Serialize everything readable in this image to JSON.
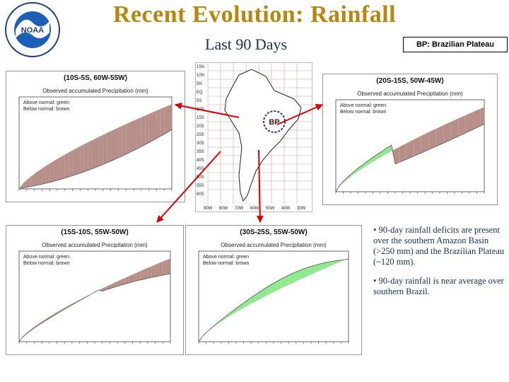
{
  "header": {
    "title": "Recent Evolution: Rainfall",
    "subtitle": "Last 90 Days",
    "bp_legend": "BP: Brazilian Plateau"
  },
  "map": {
    "region_label": "BP",
    "lat_labels": [
      "15N",
      "10N",
      "5N",
      "EQ",
      "5S",
      "10S",
      "15S",
      "20S",
      "25S",
      "30S",
      "35S",
      "40S",
      "45S",
      "50S",
      "55S",
      "60S"
    ],
    "lon_labels": [
      "90W",
      "80W",
      "70W",
      "60W",
      "50W",
      "40W",
      "30W"
    ]
  },
  "panels": [
    {
      "region": "(10S-5S, 60W-55W)",
      "subtitle": "Observed accumulated Precipitation (mm)",
      "legend": [
        "Above normal: green",
        "Below normal: brown"
      ]
    },
    {
      "region": "(20S-15S, 50W-45W)",
      "subtitle": "Observed accumulated Precipitation (mm)",
      "legend": [
        "Above normal: green",
        "Below normal: brown"
      ]
    },
    {
      "region": "(15S-10S, 55W-50W)",
      "subtitle": "Observed accumulated Precipitation (mm)",
      "legend": [
        "Above normal: green",
        "Below normal: brown"
      ]
    },
    {
      "region": "(30S-25S, 55W-50W)",
      "subtitle": "Observed accumulated Precipitation (mm)",
      "legend": [
        "Above normal: green",
        "Below normal: brown"
      ]
    }
  ],
  "bullets": [
    "• 90-day rainfall deficits are present over the southern Amazon Basin (>250 mm) and the Brazilian Plateau (~120  mm).",
    "• 90-day rainfall is near average over southern Brazil."
  ],
  "colors": {
    "title": "#b8860b",
    "text": "#14305e",
    "deficit": "#b78f88",
    "surplus": "#8ee88e",
    "arrow": "#dd0000"
  }
}
